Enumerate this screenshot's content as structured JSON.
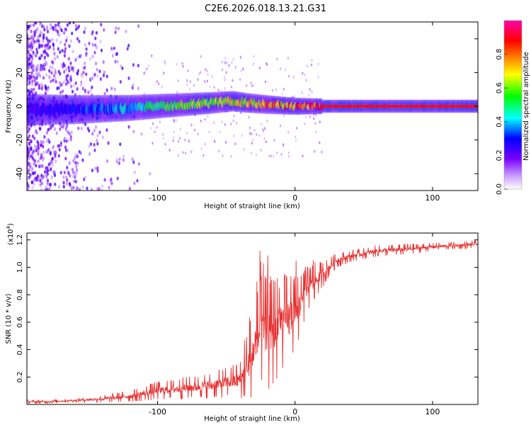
{
  "title": "C2E6.2026.018.13.21.G31",
  "chart_data": [
    {
      "type": "heatmap",
      "xlabel": "Height of straight line (km)",
      "ylabel": "Frequency (Hz)",
      "xlim": [
        -195,
        133
      ],
      "ylim": [
        -50,
        50
      ],
      "xticks": [
        -100,
        0,
        100
      ],
      "xtick_labels": [
        "-100",
        "0",
        "100"
      ],
      "yticks": [
        -40,
        -20,
        0,
        20,
        40
      ],
      "ytick_labels": [
        "-40",
        "-20",
        "0",
        "20",
        "40"
      ],
      "colorbar": {
        "label": "Normalized spectral amplitude",
        "range": [
          0,
          1
        ],
        "ticks": [
          0,
          0.2,
          0.4,
          0.6,
          0.8
        ],
        "tick_labels": [
          "0.0",
          "0.2",
          "0.4",
          "0.6",
          "0.8"
        ],
        "colors": [
          "#ffffff",
          "#7a00ff",
          "#0000ff",
          "#00ffff",
          "#00ff00",
          "#ffff00",
          "#ff8000",
          "#ff0000",
          "#ff00aa"
        ]
      },
      "ridge": {
        "description_points_x": [
          -195,
          -160,
          -120,
          -100,
          -80,
          -60,
          -45,
          -35,
          -20,
          0,
          20,
          133
        ],
        "description_points_freq": [
          -2,
          -2,
          -1,
          0,
          1,
          2,
          3,
          2,
          1,
          0,
          0,
          0
        ],
        "peak_amplitude": [
          0.25,
          0.3,
          0.45,
          0.55,
          0.6,
          0.65,
          0.7,
          0.75,
          0.8,
          0.85,
          0.9,
          0.92
        ]
      }
    },
    {
      "type": "line",
      "xlabel": "Height of straight line (km)",
      "ylabel": "SNR (10 * v/v)",
      "y_multiplier_label": "(x10",
      "y_multiplier_exp": "4",
      "xlim": [
        -195,
        133
      ],
      "ylim": [
        0,
        1.25
      ],
      "xticks": [
        -100,
        0,
        100
      ],
      "xtick_labels": [
        "-100",
        "0",
        "100"
      ],
      "yticks": [
        0.2,
        0.4,
        0.6,
        0.8,
        1.0,
        1.2
      ],
      "ytick_labels": [
        "0.2",
        "0.4",
        "0.6",
        "0.8",
        "1.0",
        "1.2"
      ],
      "color": "#e83030",
      "series": [
        {
          "name": "SNR",
          "x": [
            -195,
            -180,
            -160,
            -140,
            -120,
            -110,
            -100,
            -90,
            -80,
            -70,
            -60,
            -50,
            -40,
            -35,
            -30,
            -25,
            -20,
            -15,
            -10,
            -5,
            0,
            5,
            10,
            15,
            20,
            25,
            30,
            40,
            50,
            60,
            80,
            100,
            120,
            133
          ],
          "y": [
            0.02,
            0.02,
            0.03,
            0.04,
            0.06,
            0.08,
            0.1,
            0.11,
            0.12,
            0.13,
            0.14,
            0.16,
            0.18,
            0.25,
            0.4,
            0.55,
            0.5,
            0.55,
            0.6,
            0.62,
            0.66,
            0.75,
            0.85,
            0.9,
            0.95,
            1.0,
            1.05,
            1.08,
            1.1,
            1.12,
            1.13,
            1.15,
            1.16,
            1.17
          ],
          "noise": [
            0.01,
            0.01,
            0.01,
            0.02,
            0.03,
            0.04,
            0.05,
            0.05,
            0.06,
            0.06,
            0.07,
            0.08,
            0.1,
            0.15,
            0.25,
            0.3,
            0.3,
            0.3,
            0.25,
            0.25,
            0.2,
            0.15,
            0.12,
            0.1,
            0.07,
            0.05,
            0.04,
            0.03,
            0.03,
            0.03,
            0.03,
            0.02,
            0.02,
            0.02
          ]
        }
      ]
    }
  ]
}
